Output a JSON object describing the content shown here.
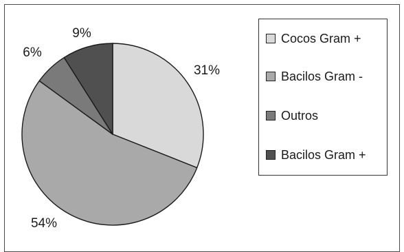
{
  "chart_data": {
    "type": "pie",
    "title": "",
    "legend_position": "right",
    "start_angle_deg": 0,
    "direction": "clockwise",
    "slices": [
      {
        "label": "Cocos Gram +",
        "value": 31,
        "value_label": "31%",
        "color": "#d9d9d9"
      },
      {
        "label": "Bacilos Gram -",
        "value": 54,
        "value_label": "54%",
        "color": "#a9a9a9"
      },
      {
        "label": "Outros",
        "value": 6,
        "value_label": "6%",
        "color": "#7a7a7a"
      },
      {
        "label": "Bacilos Gram +",
        "value": 9,
        "value_label": "9%",
        "color": "#505050"
      }
    ]
  },
  "legend": {
    "items": [
      {
        "label": "Cocos Gram +",
        "color": "#d9d9d9"
      },
      {
        "label": "Bacilos Gram -",
        "color": "#a9a9a9"
      },
      {
        "label": "Outros",
        "color": "#7a7a7a"
      },
      {
        "label": "Bacilos Gram +",
        "color": "#505050"
      }
    ]
  }
}
